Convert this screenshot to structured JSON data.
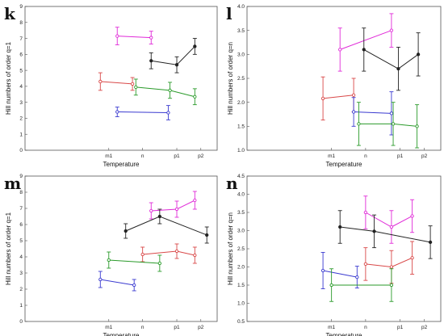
{
  "chart_data": [
    {
      "type": "line",
      "panel_label": "k",
      "xlabel": "Temperature",
      "ylabel": "Hill numbers of order q=1",
      "categories": [
        "m1",
        "n",
        "p1",
        "p2"
      ],
      "ylim": [
        0,
        9
      ],
      "yticks": [
        0,
        1,
        2,
        3,
        4,
        5,
        6,
        7,
        8,
        9
      ],
      "tick_labels": [
        "0",
        "1",
        "2",
        "3",
        "4",
        "5",
        "6",
        "7",
        "8",
        "9"
      ],
      "series": [
        {
          "color": "#e02ad8",
          "x": [
            0.25,
            1.25
          ],
          "y": [
            7.15,
            7.05
          ],
          "err": [
            0.55,
            0.4
          ]
        },
        {
          "color": "#222222",
          "x": [
            1.25,
            2.0,
            2.75
          ],
          "y": [
            5.6,
            5.35,
            6.5
          ],
          "err": [
            0.5,
            0.5,
            0.5
          ]
        },
        {
          "color": "#d94848",
          "x": [
            -0.25,
            0.7
          ],
          "y": [
            4.3,
            4.15
          ],
          "err": [
            0.55,
            0.4
          ]
        },
        {
          "color": "#2a9a2a",
          "x": [
            0.8,
            1.8,
            2.75
          ],
          "y": [
            3.95,
            3.75,
            3.35
          ],
          "err": [
            0.5,
            0.5,
            0.5
          ]
        },
        {
          "color": "#3a3ad0",
          "x": [
            0.25,
            1.75
          ],
          "y": [
            2.4,
            2.35
          ],
          "err": [
            0.3,
            0.45
          ]
        }
      ]
    },
    {
      "type": "line",
      "panel_label": "l",
      "xlabel": "Temperature",
      "ylabel": "Hill numbers of order q=n",
      "categories": [
        "m1",
        "n",
        "p1",
        "p2"
      ],
      "ylim": [
        1.0,
        4.0
      ],
      "yticks": [
        1.0,
        1.5,
        2.0,
        2.5,
        3.0,
        3.5,
        4.0
      ],
      "tick_labels": [
        "1.0",
        "1.5",
        "2.0",
        "2.5",
        "3.0",
        "3.5",
        "4.0"
      ],
      "series": [
        {
          "color": "#e02ad8",
          "x": [
            0.25,
            1.75
          ],
          "y": [
            3.1,
            3.5
          ],
          "err": [
            0.45,
            0.35
          ]
        },
        {
          "color": "#222222",
          "x": [
            0.95,
            1.95,
            2.75
          ],
          "y": [
            3.1,
            2.7,
            3.0
          ],
          "err": [
            0.45,
            0.45,
            0.45
          ]
        },
        {
          "color": "#d94848",
          "x": [
            -0.25,
            0.65
          ],
          "y": [
            2.08,
            2.15
          ],
          "err": [
            0.45,
            0.35
          ]
        },
        {
          "color": "#3a3ad0",
          "x": [
            0.65,
            1.75
          ],
          "y": [
            1.8,
            1.77
          ],
          "err": [
            0.3,
            0.45
          ]
        },
        {
          "color": "#2a9a2a",
          "x": [
            0.8,
            1.8,
            2.7
          ],
          "y": [
            1.55,
            1.55,
            1.5
          ],
          "err": [
            0.45,
            0.45,
            0.45
          ]
        }
      ]
    },
    {
      "type": "line",
      "panel_label": "m",
      "xlabel": "Temperature",
      "ylabel": "Hill numbers of order q=1",
      "categories": [
        "m1",
        "n",
        "p1",
        "p2"
      ],
      "ylim": [
        0,
        9
      ],
      "yticks": [
        0,
        1,
        2,
        3,
        4,
        5,
        6,
        7,
        8,
        9
      ],
      "tick_labels": [
        "0",
        "1",
        "2",
        "3",
        "4",
        "5",
        "6",
        "7",
        "8",
        "9"
      ],
      "series": [
        {
          "color": "#e02ad8",
          "x": [
            1.25,
            2.0,
            2.75
          ],
          "y": [
            6.85,
            6.95,
            7.5
          ],
          "err": [
            0.5,
            0.5,
            0.55
          ]
        },
        {
          "color": "#222222",
          "x": [
            0.5,
            1.5,
            3.25
          ],
          "y": [
            5.6,
            6.5,
            5.35
          ],
          "err": [
            0.45,
            0.45,
            0.5
          ]
        },
        {
          "color": "#d94848",
          "x": [
            1.0,
            2.0,
            2.75
          ],
          "y": [
            4.15,
            4.35,
            4.1
          ],
          "err": [
            0.45,
            0.45,
            0.5
          ]
        },
        {
          "color": "#2a9a2a",
          "x": [
            0.0,
            1.5
          ],
          "y": [
            3.8,
            3.6
          ],
          "err": [
            0.5,
            0.5
          ]
        },
        {
          "color": "#3a3ad0",
          "x": [
            -0.25,
            0.75
          ],
          "y": [
            2.6,
            2.25
          ],
          "err": [
            0.5,
            0.35
          ]
        }
      ]
    },
    {
      "type": "line",
      "panel_label": "n",
      "xlabel": "Temperature",
      "ylabel": "Hill numbers of order q=n",
      "categories": [
        "m1",
        "n",
        "p1",
        "p2"
      ],
      "ylim": [
        0.5,
        4.5
      ],
      "yticks": [
        0.5,
        1.0,
        1.5,
        2.0,
        2.5,
        3.0,
        3.5,
        4.0,
        4.5
      ],
      "tick_labels": [
        "0.5",
        "1.0",
        "1.5",
        "2.0",
        "2.5",
        "3.0",
        "3.5",
        "4.0",
        "4.5"
      ],
      "series": [
        {
          "color": "#e02ad8",
          "x": [
            1.0,
            1.75,
            2.5
          ],
          "y": [
            3.5,
            3.1,
            3.4
          ],
          "err": [
            0.45,
            0.45,
            0.45
          ]
        },
        {
          "color": "#222222",
          "x": [
            0.25,
            1.25,
            3.25
          ],
          "y": [
            3.1,
            2.98,
            2.68
          ],
          "err": [
            0.45,
            0.45,
            0.45
          ]
        },
        {
          "color": "#d94848",
          "x": [
            1.0,
            1.75,
            2.5
          ],
          "y": [
            2.08,
            2.0,
            2.25
          ],
          "err": [
            0.45,
            0.45,
            0.45
          ]
        },
        {
          "color": "#3a3ad0",
          "x": [
            -0.25,
            0.75
          ],
          "y": [
            1.9,
            1.72
          ],
          "err": [
            0.5,
            0.3
          ]
        },
        {
          "color": "#2a9a2a",
          "x": [
            0.0,
            1.75
          ],
          "y": [
            1.5,
            1.5
          ],
          "err": [
            0.45,
            0.45
          ]
        }
      ]
    }
  ]
}
